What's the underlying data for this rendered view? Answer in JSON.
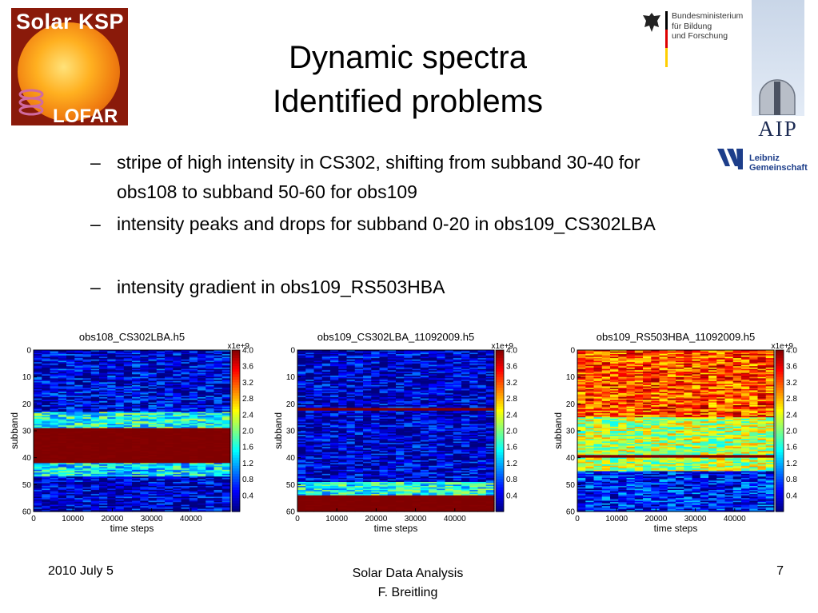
{
  "slide": {
    "title_line1": "Dynamic spectra",
    "title_line2": "Identified problems",
    "bullets": [
      {
        "dash": "–",
        "text": "stripe of high intensity in CS302, shifting from subband 30-40 for obs108 to subband 50-60 for obs109"
      },
      {
        "dash": "–",
        "text": "intensity peaks and drops for subband 0-20 in obs109_CS302LBA"
      },
      {
        "dash": "–",
        "text": "intensity gradient in obs109_RS503HBA"
      }
    ],
    "footer": {
      "date": "2010 July 5",
      "center_line1": "Solar Data Analysis",
      "center_line2": "F. Breitling",
      "page": "7"
    }
  },
  "logos": {
    "ksp_top": "Solar KSP",
    "ksp_bottom": "LOFAR",
    "bmbf_line1": "Bundesministerium",
    "bmbf_line2": "für Bildung",
    "bmbf_line3": "und Forschung",
    "aip": "AIP",
    "leibniz_line1": "Leibniz",
    "leibniz_line2": "Gemeinschaft",
    "icons": [
      "sun-logo-icon",
      "eagle-icon",
      "observatory-dome-icon",
      "leibniz-mark-icon"
    ]
  },
  "chart_data": [
    {
      "type": "heatmap",
      "title": "obs108_CS302LBA.h5",
      "xlabel": "time steps",
      "ylabel": "subband",
      "xlim": [
        0,
        50000
      ],
      "ylim": [
        0,
        60
      ],
      "x_ticks": [
        "0",
        "10000",
        "20000",
        "30000",
        "40000"
      ],
      "y_ticks": [
        "0",
        "10",
        "20",
        "30",
        "40",
        "50",
        "60"
      ],
      "colorbar": {
        "multiplier": "x1e+9",
        "min": 0,
        "max": 4.0,
        "ticks": [
          "4.0",
          "3.6",
          "3.2",
          "2.8",
          "2.4",
          "2.0",
          "1.6",
          "1.2",
          "0.8",
          "0.4"
        ]
      },
      "features": [
        {
          "description_subbands": [
            0,
            23
          ],
          "level": 0.4
        },
        {
          "description_subbands": [
            23,
            29
          ],
          "level": 1.6
        },
        {
          "description_subbands": [
            29,
            42
          ],
          "level": 4.0
        },
        {
          "description_subbands": [
            42,
            47
          ],
          "level": 1.4
        },
        {
          "description_subbands": [
            47,
            60
          ],
          "level": 0.3
        }
      ]
    },
    {
      "type": "heatmap",
      "title": "obs109_CS302LBA_11092009.h5",
      "xlabel": "time steps",
      "ylabel": "subband",
      "xlim": [
        0,
        50000
      ],
      "ylim": [
        0,
        60
      ],
      "x_ticks": [
        "0",
        "10000",
        "20000",
        "30000",
        "40000"
      ],
      "y_ticks": [
        "0",
        "10",
        "20",
        "30",
        "40",
        "50",
        "60"
      ],
      "colorbar": {
        "multiplier": "x1e+9",
        "min": 0,
        "max": 4.0,
        "ticks": [
          "4.0",
          "3.6",
          "3.2",
          "2.8",
          "2.4",
          "2.0",
          "1.6",
          "1.2",
          "0.8",
          "0.4"
        ]
      },
      "features": [
        {
          "description_subbands": [
            0,
            50
          ],
          "level": 0.3
        },
        {
          "description_subbands": [
            21.5,
            22.5
          ],
          "level": 4.0
        },
        {
          "description_subbands": [
            49,
            54
          ],
          "level": 1.6
        },
        {
          "description_subbands": [
            54,
            60
          ],
          "level": 4.0
        }
      ]
    },
    {
      "type": "heatmap",
      "title": "obs109_RS503HBA_11092009.h5",
      "xlabel": "time steps",
      "ylabel": "subband",
      "xlim": [
        0,
        50000
      ],
      "ylim": [
        0,
        60
      ],
      "x_ticks": [
        "0",
        "10000",
        "20000",
        "30000",
        "40000"
      ],
      "y_ticks": [
        "0",
        "10",
        "20",
        "30",
        "40",
        "50",
        "60"
      ],
      "colorbar": {
        "multiplier": "x1e+9",
        "min": 0,
        "max": 4.0,
        "ticks": [
          "4.0",
          "3.6",
          "3.2",
          "2.8",
          "2.4",
          "2.0",
          "1.6",
          "1.2",
          "0.8",
          "0.4"
        ]
      },
      "features": [
        {
          "description_subbands": [
            0,
            25
          ],
          "level": 3.2
        },
        {
          "description_subbands": [
            25,
            45
          ],
          "level": 2.2
        },
        {
          "description_subbands": [
            45,
            60
          ],
          "level": 0.6
        },
        {
          "description_subbands": [
            39,
            40
          ],
          "level": 4.0
        }
      ]
    }
  ]
}
